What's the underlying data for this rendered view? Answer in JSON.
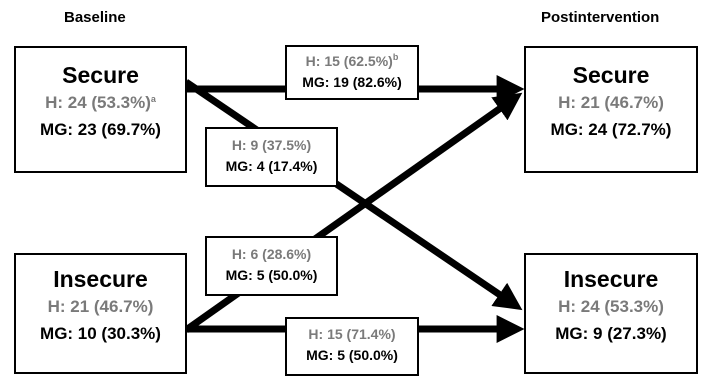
{
  "headers": {
    "baseline": "Baseline",
    "post": "Postintervention"
  },
  "baseline": {
    "secure": {
      "title": "Secure",
      "h": "H: 24 (53.3%)",
      "h_sup": "a",
      "mg": "MG: 23 (69.7%)"
    },
    "insecure": {
      "title": "Insecure",
      "h": "H: 21 (46.7%)",
      "mg": "MG: 10 (30.3%)"
    }
  },
  "post": {
    "secure": {
      "title": "Secure",
      "h": "H: 21 (46.7%)",
      "mg": "MG: 24 (72.7%)"
    },
    "insecure": {
      "title": "Insecure",
      "h": "H: 24 (53.3%)",
      "mg": "MG: 9 (27.3%)"
    }
  },
  "flows": {
    "secure_to_secure": {
      "h": "H: 15 (62.5%)",
      "h_sup": "b",
      "mg": "MG: 19 (82.6%)"
    },
    "secure_to_insecure": {
      "h": "H: 9 (37.5%)",
      "mg": "MG: 4 (17.4%)"
    },
    "insecure_to_secure": {
      "h": "H: 6 (28.6%)",
      "mg": "MG: 5 (50.0%)"
    },
    "insecure_to_insecure": {
      "h": "H: 15 (71.4%)",
      "mg": "MG: 5 (50.0%)"
    }
  }
}
